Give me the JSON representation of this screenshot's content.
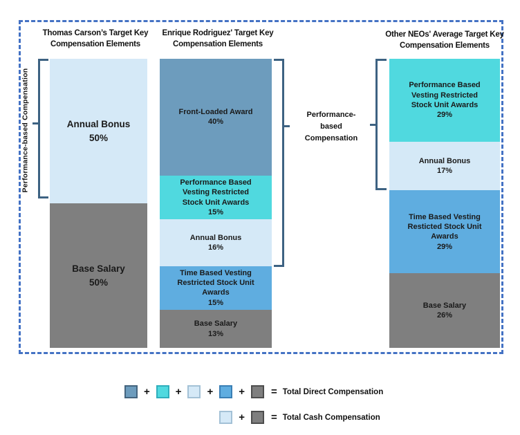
{
  "frame": {
    "border_color": "#4472C4"
  },
  "chart_data": {
    "type": "bar",
    "subtype": "percent-stacked-columns",
    "palette": {
      "front_loaded_award": {
        "fill": "#6D9CBD",
        "edge": "#44647E"
      },
      "performance_rsu": {
        "fill": "#50D9DF",
        "edge": "#2FAEBC"
      },
      "annual_bonus": {
        "fill": "#D5E9F7",
        "edge": "#A3C1D6"
      },
      "time_rsu": {
        "fill": "#5FADE0",
        "edge": "#3A7FB5"
      },
      "base_salary": {
        "fill": "#7F7F7F",
        "edge": "#4D4D4D"
      }
    },
    "bars": [
      {
        "id": "thomas",
        "title": "Thomas Carson’s Target Key Compensation Elements",
        "segments": [
          {
            "label": "Annual Bonus",
            "pct": "50%",
            "value": 50,
            "color": "annual_bonus"
          },
          {
            "label": "Base Salary",
            "pct": "50%",
            "value": 50,
            "color": "base_salary"
          }
        ]
      },
      {
        "id": "enrique",
        "title": "Enrique Rodriguez' Target Key Compensation Elements",
        "segments": [
          {
            "label": "Front-Loaded Award",
            "pct": "40%",
            "value": 40,
            "color": "front_loaded_award"
          },
          {
            "label": "Performance Based Vesting Restricted Stock Unit Awards",
            "pct": "15%",
            "value": 15,
            "color": "performance_rsu"
          },
          {
            "label": "Annual Bonus",
            "pct": "16%",
            "value": 16,
            "color": "annual_bonus"
          },
          {
            "label": "Time Based Vesting Restricted Stock Unit Awards",
            "pct": "15%",
            "value": 15,
            "color": "time_rsu"
          },
          {
            "label": "Base Salary",
            "pct": "13%",
            "value": 13,
            "color": "base_salary"
          }
        ]
      },
      {
        "id": "other_neos",
        "title": "Other NEOs' Average Target Key Compensation Elements",
        "segments": [
          {
            "label": "Performance Based Vesting Restricted Stock Unit Awards",
            "pct": "29%",
            "value": 29,
            "color": "performance_rsu"
          },
          {
            "label": "Annual Bonus",
            "pct": "17%",
            "value": 17,
            "color": "annual_bonus"
          },
          {
            "label": "Time Based Vesting Resticted Stock Unit Awards",
            "pct": "29%",
            "value": 29,
            "color": "time_rsu"
          },
          {
            "label": "Base Salary",
            "pct": "26%",
            "value": 26,
            "color": "base_salary"
          }
        ]
      }
    ],
    "annotations": {
      "left_axis_label": "Performance-based Compensation",
      "center_label": "Performance-based Compensation"
    },
    "legend": {
      "rows": [
        {
          "swatches": [
            "front_loaded_award",
            "performance_rsu",
            "annual_bonus",
            "time_rsu",
            "base_salary"
          ],
          "operator": "+",
          "equals": "=",
          "label": "Total Direct Compensation"
        },
        {
          "swatches": [
            "annual_bonus",
            "base_salary"
          ],
          "operator": "+",
          "equals": "=",
          "label": "Total Cash Compensation"
        }
      ]
    }
  }
}
